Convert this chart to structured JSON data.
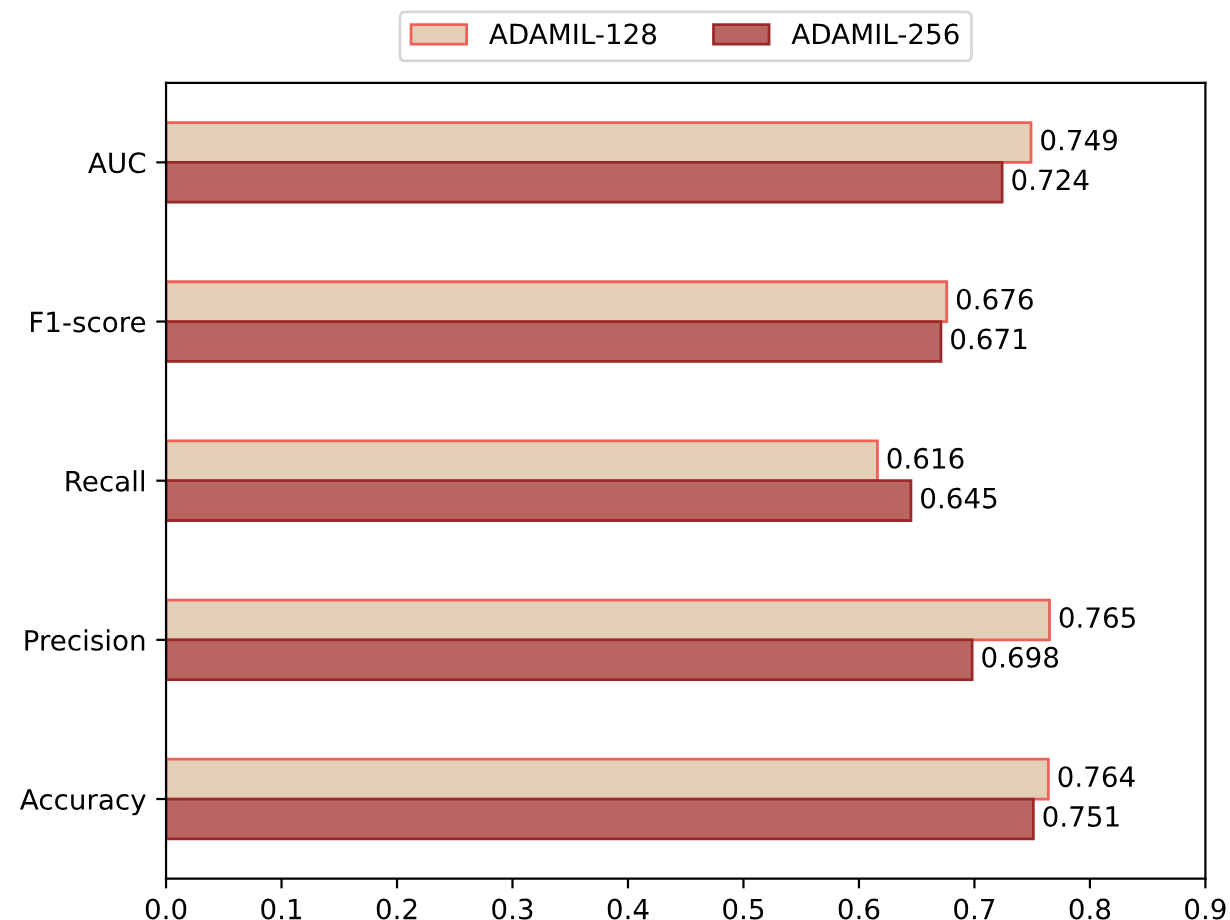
{
  "chart_data": {
    "type": "bar",
    "orientation": "horizontal",
    "categories": [
      "AUC",
      "F1-score",
      "Recall",
      "Precision",
      "Accuracy"
    ],
    "series": [
      {
        "name": "ADAMIL-128",
        "color": "#e3cfb6",
        "values": [
          0.749,
          0.676,
          0.616,
          0.765,
          0.764
        ]
      },
      {
        "name": "ADAMIL-256",
        "color": "#b96663",
        "values": [
          0.724,
          0.671,
          0.645,
          0.698,
          0.751
        ]
      }
    ],
    "xlim": [
      0.0,
      0.9
    ],
    "xticks": [
      {
        "value": 0.0,
        "label": "0.0"
      },
      0.1,
      0.2,
      0.3,
      0.4,
      0.5,
      0.6,
      0.7,
      0.8,
      0.9
    ],
    "data_labels": true,
    "legend": "top",
    "grid": false
  }
}
